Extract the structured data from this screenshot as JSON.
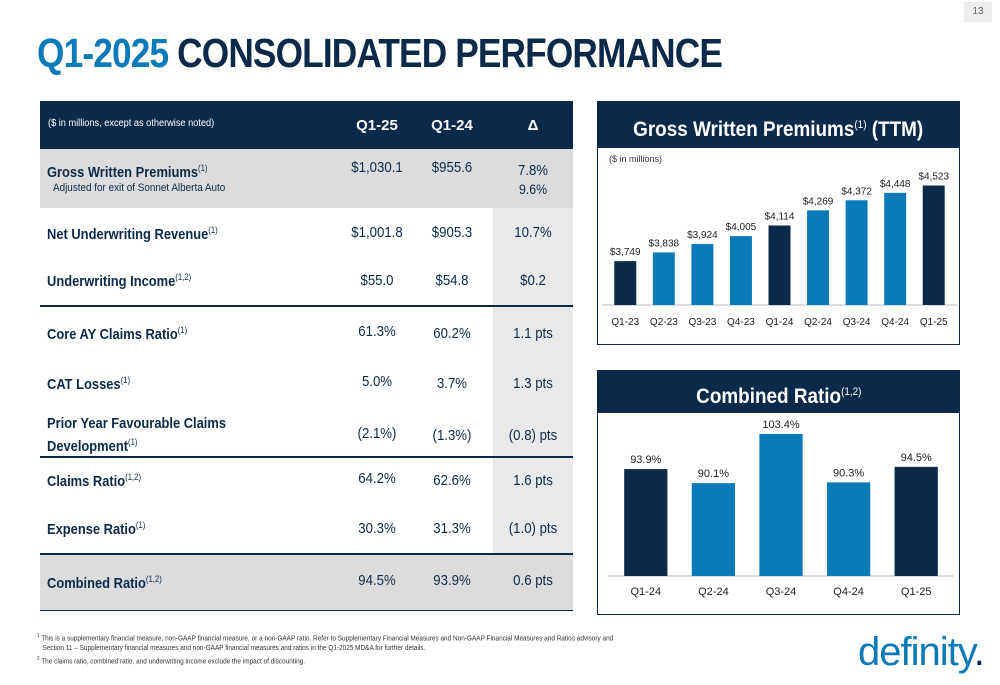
{
  "page_number": "13",
  "title": {
    "accent": "Q1-2025",
    "main": "CONSOLIDATED PERFORMANCE"
  },
  "table": {
    "note": "($ in millions, except as otherwise noted)",
    "columns": [
      "Q1-25",
      "Q1-24",
      "Δ"
    ],
    "rows": [
      {
        "label": "Gross Written Premiums",
        "sup": "(1)",
        "sub": "Adjusted for exit of Sonnet Alberta Auto",
        "q125": "$1,030.1",
        "q124": "$955.6",
        "delta": "7.8%",
        "delta2": "9.6%"
      },
      {
        "label": "Net Underwriting Revenue",
        "sup": "(1)",
        "q125": "$1,001.8",
        "q124": "$905.3",
        "delta": "10.7%"
      },
      {
        "label": "Underwriting Income",
        "sup": "(1,2)",
        "q125": "$55.0",
        "q124": "$54.8",
        "delta": "$0.2"
      },
      {
        "label": "Core AY Claims Ratio",
        "sup": "(1)",
        "q125": "61.3%",
        "q124": "60.2%",
        "delta": "1.1 pts"
      },
      {
        "label": "CAT Losses",
        "sup": "(1)",
        "q125": "5.0%",
        "q124": "3.7%",
        "delta": "1.3 pts"
      },
      {
        "label": "Prior Year Favourable Claims",
        "label2": "Development",
        "sup": "(1)",
        "q125": "(2.1%)",
        "q124": "(1.3%)",
        "delta": "(0.8) pts"
      },
      {
        "label": "Claims Ratio",
        "sup": "(1,2)",
        "q125": "64.2%",
        "q124": "62.6%",
        "delta": "1.6 pts"
      },
      {
        "label": "Expense Ratio",
        "sup": "(1)",
        "q125": "30.3%",
        "q124": "31.3%",
        "delta": "(1.0) pts"
      },
      {
        "label": "Combined Ratio",
        "sup": "(1,2)",
        "q125": "94.5%",
        "q124": "93.9%",
        "delta": "0.6 pts"
      }
    ]
  },
  "gwp_panel": {
    "title": "Gross Written Premiums",
    "sup": "(1)",
    "suffix": "(TTM)",
    "unit_note": "($ in millions)"
  },
  "cr_panel": {
    "title": "Combined Ratio",
    "sup": "(1,2)"
  },
  "chart_data": [
    {
      "type": "bar",
      "title": "Gross Written Premiums (TTM)",
      "categories": [
        "Q1-23",
        "Q2-23",
        "Q3-23",
        "Q4-23",
        "Q1-24",
        "Q2-24",
        "Q3-24",
        "Q4-24",
        "Q1-25"
      ],
      "values": [
        3749,
        3838,
        3924,
        4005,
        4114,
        4269,
        4372,
        4448,
        4523
      ],
      "labels": [
        "$3,749",
        "$3,838",
        "$3,924",
        "$4,005",
        "$4,114",
        "$4,269",
        "$4,372",
        "$4,448",
        "$4,523"
      ],
      "colors": [
        "#0b2a4a",
        "#0a7ab8",
        "#0a7ab8",
        "#0a7ab8",
        "#0b2a4a",
        "#0a7ab8",
        "#0a7ab8",
        "#0a7ab8",
        "#0b2a4a"
      ],
      "ylim": [
        3300,
        4600
      ]
    },
    {
      "type": "bar",
      "title": "Combined Ratio",
      "categories": [
        "Q1-24",
        "Q2-24",
        "Q3-24",
        "Q4-24",
        "Q1-25"
      ],
      "values": [
        93.9,
        90.1,
        103.4,
        90.3,
        94.5
      ],
      "labels": [
        "93.9%",
        "90.1%",
        "103.4%",
        "90.3%",
        "94.5%"
      ],
      "colors": [
        "#0b2a4a",
        "#0a7ab8",
        "#0a7ab8",
        "#0a7ab8",
        "#0b2a4a"
      ],
      "ylim": [
        65,
        105
      ]
    }
  ],
  "footnotes": [
    {
      "sup": "1",
      "text": "This is a supplementary financial measure, non-GAAP financial measure, or a non-GAAP ratio. Refer to Supplementary Financial Measures and Non-GAAP Financial Measures and Ratios advisory and"
    },
    {
      "sup": "",
      "text": "Section 11 – Supplementary financial measures and non-GAAP financial measures and ratios in the Q1-2025 MD&A for further details."
    },
    {
      "sup": "2",
      "text": "The claims ratio, combined ratio, and underwriting income exclude the impact of discounting."
    }
  ],
  "logo": {
    "text": "definity",
    "dot": "."
  },
  "colors": {
    "navy": "#0b2a4a",
    "blue": "#0a7ab8",
    "shade": "#dcdcdd"
  }
}
